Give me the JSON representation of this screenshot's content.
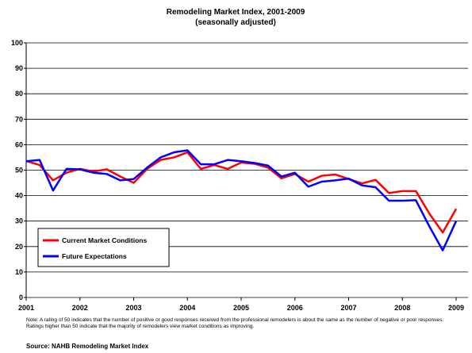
{
  "chart_data": {
    "type": "line",
    "title": "Remodeling Market Index, 2001-2009",
    "subtitle": "(seasonally adjusted)",
    "x": [
      2001,
      2001.25,
      2001.5,
      2001.75,
      2002,
      2002.25,
      2002.5,
      2002.75,
      2003,
      2003.25,
      2003.5,
      2003.75,
      2004,
      2004.25,
      2004.5,
      2004.75,
      2005,
      2005.25,
      2005.5,
      2005.75,
      2006,
      2006.25,
      2006.5,
      2006.75,
      2007,
      2007.25,
      2007.5,
      2007.75,
      2008,
      2008.25,
      2008.5,
      2008.75,
      2009
    ],
    "series": [
      {
        "name": "Current Market Conditions",
        "color": "#ff0000",
        "values": [
          53.6,
          52,
          46,
          49,
          50.5,
          49.5,
          50.3,
          47.5,
          45,
          50.5,
          54,
          55,
          57,
          50.5,
          52,
          50.5,
          53,
          52.5,
          51,
          46.8,
          48.5,
          45.5,
          47.8,
          48.3,
          46.5,
          44.8,
          46.2,
          41,
          41.8,
          41.8,
          33,
          25.5,
          34.8
        ]
      },
      {
        "name": "Future Expectations",
        "color": "#0000ff",
        "values": [
          53.5,
          54,
          42,
          50.5,
          50.3,
          49,
          48.5,
          46,
          46.5,
          51,
          55,
          57,
          57.8,
          52.3,
          52.3,
          54,
          53.5,
          52.8,
          51.8,
          47.5,
          49,
          43.5,
          45.5,
          46,
          46.7,
          44,
          43.3,
          38,
          38,
          38.2,
          28,
          18.5,
          30
        ]
      }
    ],
    "xlim": [
      2001,
      2009
    ],
    "xticks": [
      2001,
      2002,
      2003,
      2004,
      2005,
      2006,
      2007,
      2008,
      2009
    ],
    "ylim": [
      0,
      100
    ],
    "yticks": [
      0,
      10,
      20,
      30,
      40,
      50,
      60,
      70,
      80,
      90,
      100
    ],
    "grid": true,
    "legend": "lower left",
    "note": "Note: A rating of 50 indicates that the number of positive or good responses received from the professional remodelers is about the same as the number of negative or poor responses. Ratings higher than 50 indicate that the majority of remodelers view market conditions as improving.",
    "source": "Source: NAHB Remodeling Market Index"
  }
}
